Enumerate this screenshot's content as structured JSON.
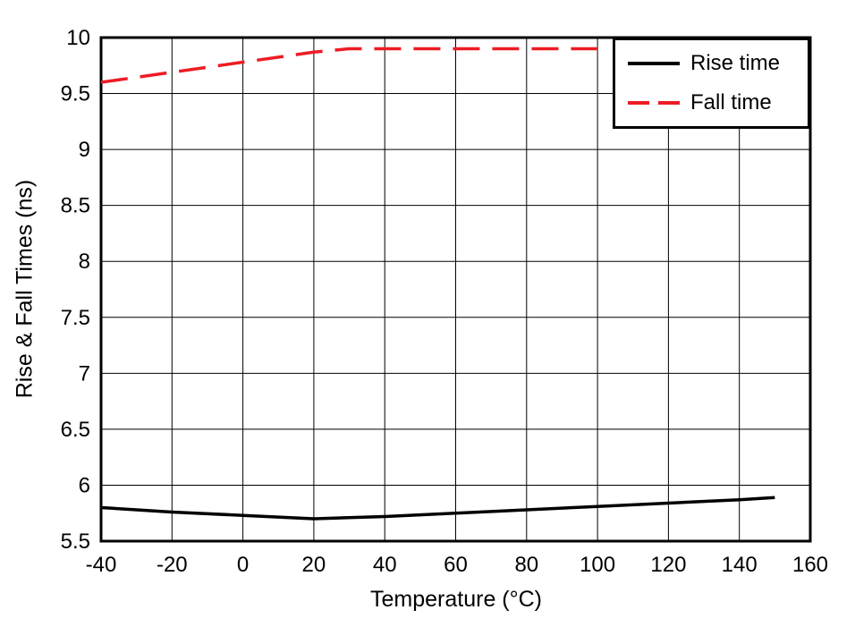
{
  "chart_data": {
    "type": "line",
    "title": "",
    "xlabel": "Temperature (°C)",
    "ylabel": "Rise & Fall Times (ns)",
    "xlim": [
      -40,
      160
    ],
    "ylim": [
      5.5,
      10
    ],
    "xticks": [
      -40,
      -20,
      0,
      20,
      40,
      60,
      80,
      100,
      120,
      140,
      160
    ],
    "xtick_labels": [
      "-40",
      "-20",
      "0",
      "20",
      "40",
      "60",
      "80",
      "100",
      "120",
      "140",
      "160"
    ],
    "yticks": [
      5.5,
      6,
      6.5,
      7,
      7.5,
      8,
      8.5,
      9,
      9.5,
      10
    ],
    "ytick_labels": [
      "5.5",
      "6",
      "6.5",
      "7",
      "7.5",
      "8",
      "8.5",
      "9",
      "9.5",
      "10"
    ],
    "grid": true,
    "legend_position": "top-right",
    "series": [
      {
        "name": "Rise time",
        "color": "#000000",
        "style": "solid",
        "x": [
          -40,
          -20,
          0,
          20,
          40,
          60,
          80,
          100,
          120,
          140,
          150
        ],
        "y": [
          5.8,
          5.76,
          5.73,
          5.7,
          5.72,
          5.75,
          5.78,
          5.81,
          5.84,
          5.87,
          5.89
        ]
      },
      {
        "name": "Fall time",
        "color": "#ed1c24",
        "style": "dashed",
        "x": [
          -40,
          -20,
          0,
          20,
          30,
          40,
          60,
          80,
          100
        ],
        "y": [
          9.6,
          9.69,
          9.78,
          9.87,
          9.9,
          9.9,
          9.9,
          9.9,
          9.9
        ]
      }
    ]
  }
}
